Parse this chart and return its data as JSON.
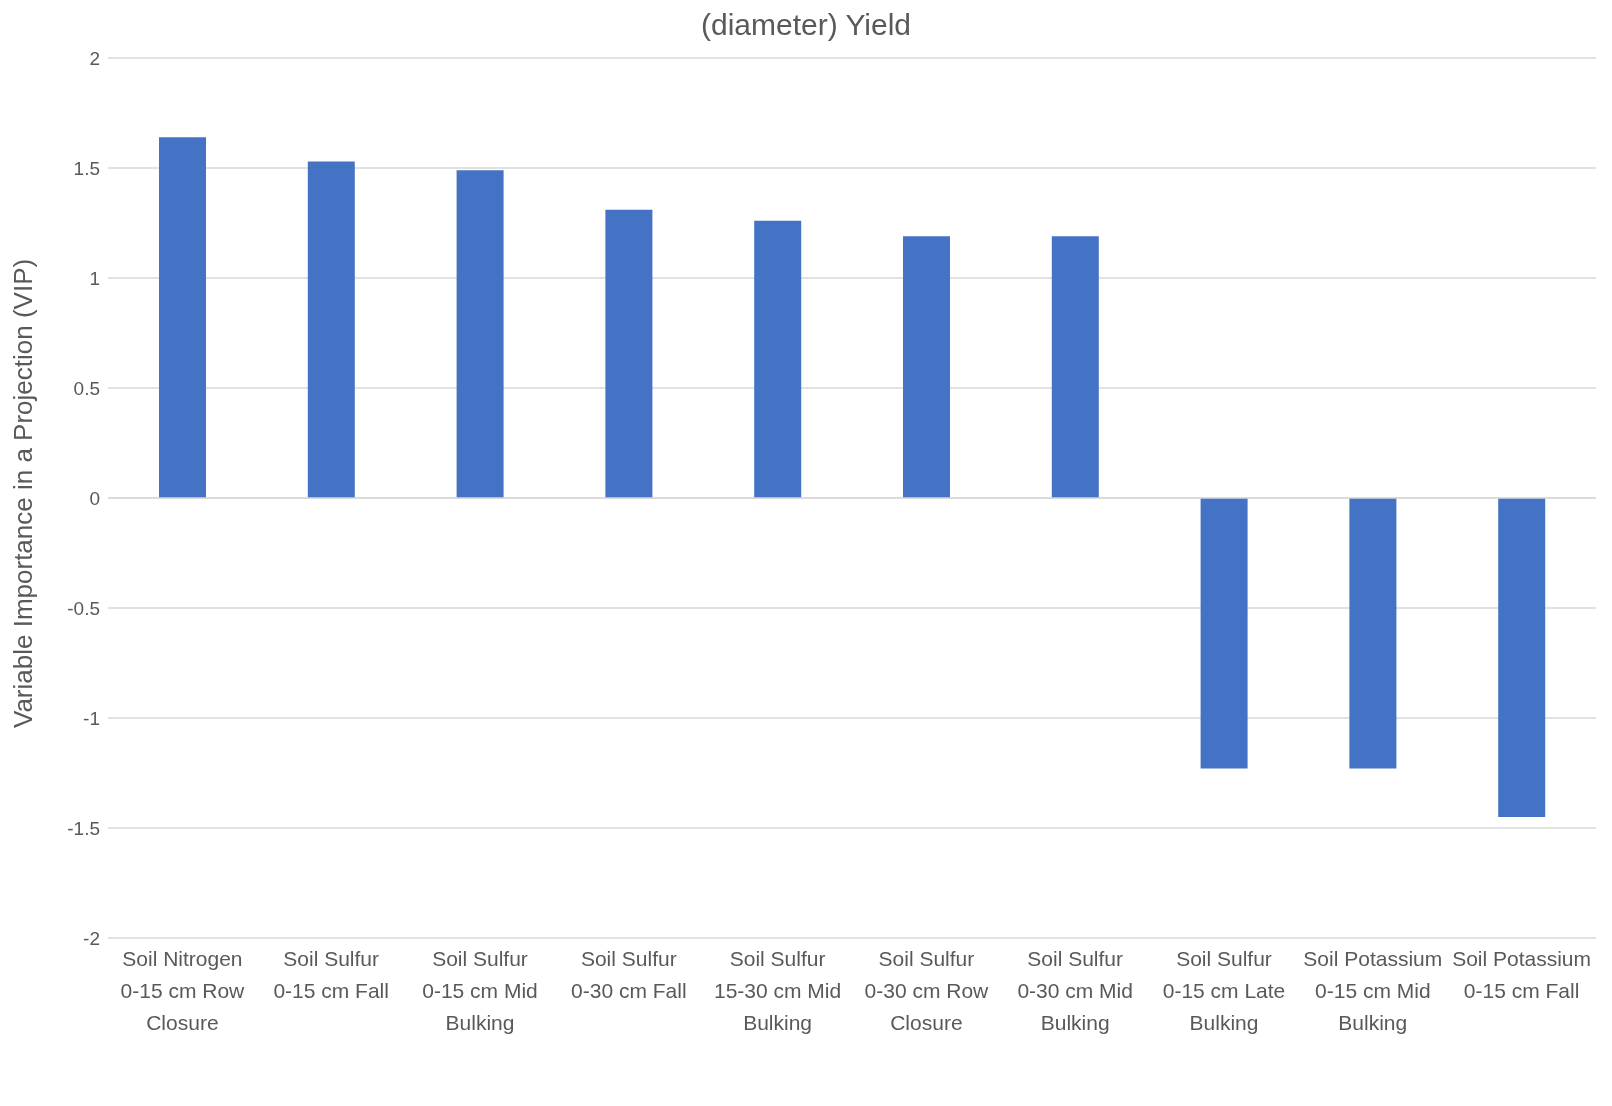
{
  "chart_data": {
    "type": "bar",
    "title": "(diameter) Yield",
    "ylabel": "Variable Importance in a Projection (VIP)",
    "categories": [
      "Soil Nitrogen 0-15 cm Row Closure",
      "Soil Sulfur 0-15 cm Fall",
      "Soil Sulfur 0-15 cm Mid Bulking",
      "Soil Sulfur 0-30 cm Fall",
      "Soil Sulfur 15-30 cm Mid Bulking",
      "Soil Sulfur 0-30 cm Row Closure",
      "Soil Sulfur 0-30 cm Mid Bulking",
      "Soil Sulfur 0-15 cm Late Bulking",
      "Soil Potassium 0-15 cm Mid Bulking",
      "Soil Potassium 0-15 cm Fall"
    ],
    "values": [
      1.64,
      1.53,
      1.49,
      1.31,
      1.26,
      1.19,
      1.19,
      -1.23,
      -1.23,
      -1.45
    ],
    "color": "#4472c4",
    "ylim": [
      -2,
      2
    ],
    "yticks": [
      -2,
      -1.5,
      -1,
      -0.5,
      0,
      0.5,
      1,
      1.5,
      2
    ],
    "grid": "y"
  }
}
